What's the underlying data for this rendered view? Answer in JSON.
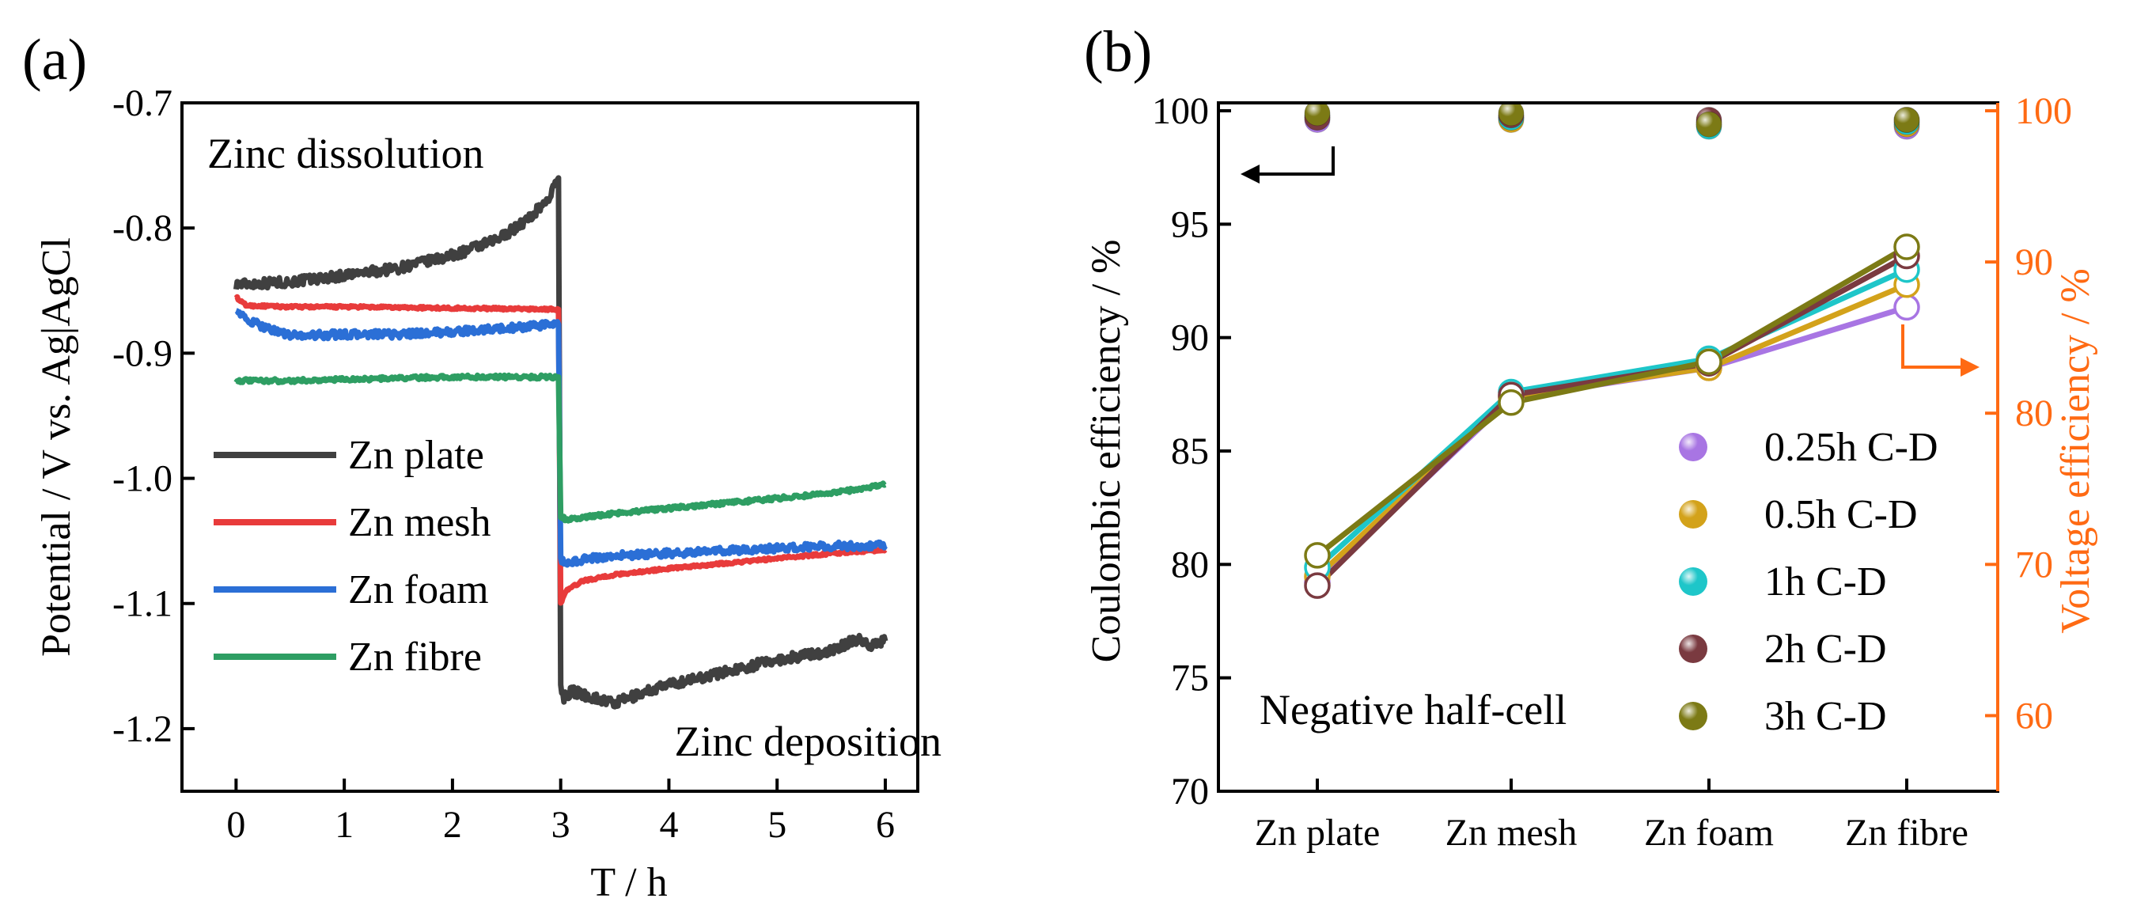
{
  "chart_data": [
    {
      "type": "line",
      "panel_label": "(a)",
      "title": "",
      "xlabel": "T / h",
      "ylabel": "Potential / V vs. Ag|AgCl",
      "xlim": [
        -0.5,
        6.3
      ],
      "ylim": [
        -1.25,
        -0.7
      ],
      "x_ticks": [
        0,
        1,
        2,
        3,
        4,
        5,
        6
      ],
      "y_ticks": [
        -0.7,
        -0.8,
        -0.9,
        -1.0,
        -1.1,
        -1.2
      ],
      "y_tick_labels": [
        "-0.7",
        "-0.8",
        "-0.9",
        "-1.0",
        "-1.1",
        "-1.2"
      ],
      "annotations": [
        "Zinc dissolution",
        "Zinc deposition"
      ],
      "legend": [
        "Zn plate",
        "Zn mesh",
        "Zn foam",
        "Zn fibre"
      ],
      "series": [
        {
          "name": "Zn plate",
          "color": "#404040",
          "noise": 0.004,
          "x": [
            0,
            0.5,
            1,
            1.5,
            2,
            2.4,
            2.7,
            2.9,
            2.98,
            3.0,
            3.03,
            3.1,
            3.3,
            3.5,
            3.8,
            4.0,
            4.5,
            5.0,
            5.5,
            5.75,
            5.85,
            6.0
          ],
          "y": [
            -0.845,
            -0.843,
            -0.838,
            -0.832,
            -0.822,
            -0.81,
            -0.793,
            -0.775,
            -0.76,
            -1.165,
            -1.175,
            -1.17,
            -1.175,
            -1.18,
            -1.17,
            -1.165,
            -1.155,
            -1.145,
            -1.138,
            -1.128,
            -1.133,
            -1.13
          ]
        },
        {
          "name": "Zn mesh",
          "color": "#e83b3b",
          "noise": 0.001,
          "x": [
            0,
            0.03,
            0.1,
            0.5,
            1,
            2,
            2.98,
            3.0,
            3.05,
            3.2,
            3.5,
            4,
            4.5,
            5,
            5.5,
            6.0
          ],
          "y": [
            -0.855,
            -0.858,
            -0.862,
            -0.863,
            -0.863,
            -0.864,
            -0.865,
            -1.1,
            -1.09,
            -1.082,
            -1.077,
            -1.072,
            -1.068,
            -1.064,
            -1.06,
            -1.057
          ]
        },
        {
          "name": "Zn foam",
          "color": "#2b6fd6",
          "noise": 0.003,
          "x": [
            0,
            0.03,
            0.1,
            0.3,
            0.5,
            1,
            1.5,
            2,
            2.5,
            2.98,
            3.0,
            3.05,
            3.2,
            3.5,
            4,
            4.5,
            5,
            5.5,
            6.0
          ],
          "y": [
            -0.863,
            -0.868,
            -0.874,
            -0.88,
            -0.886,
            -0.885,
            -0.885,
            -0.883,
            -0.88,
            -0.877,
            -1.066,
            -1.068,
            -1.065,
            -1.062,
            -1.06,
            -1.058,
            -1.056,
            -1.054,
            -1.054
          ]
        },
        {
          "name": "Zn fibre",
          "color": "#2e9e63",
          "noise": 0.0015,
          "x": [
            0,
            0.5,
            1,
            1.5,
            2,
            2.5,
            2.98,
            3.0,
            3.05,
            3.5,
            4,
            4.5,
            5,
            5.5,
            5.8,
            6.0
          ],
          "y": [
            -0.922,
            -0.922,
            -0.921,
            -0.92,
            -0.919,
            -0.919,
            -0.919,
            -1.03,
            -1.033,
            -1.028,
            -1.024,
            -1.02,
            -1.016,
            -1.012,
            -1.008,
            -1.005
          ]
        }
      ]
    },
    {
      "type": "scatter",
      "panel_label": "(b)",
      "title": "",
      "categories": [
        "Zn plate",
        "Zn mesh",
        "Zn foam",
        "Zn fibre"
      ],
      "xlabel": "",
      "ylabel": "Coulombic efficiency / %",
      "ylim": [
        70,
        100
      ],
      "y_ticks": [
        70,
        75,
        80,
        85,
        90,
        95,
        100
      ],
      "y2label": "Voltage efficiency / %",
      "y2lim": [
        55,
        100
      ],
      "y2_ticks": [
        60,
        70,
        80,
        90,
        100
      ],
      "y2_color": "#ff6a13",
      "annotation": "Negative half-cell",
      "legend": [
        "0.25h C-D",
        "0.5h C-D",
        "1h C-D",
        "2h C-D",
        "3h C-D"
      ],
      "series": [
        {
          "name": "0.25h C-D",
          "color": "#a875e3",
          "coulombic_efficiency": [
            99.6,
            99.7,
            99.4,
            99.3
          ],
          "voltage_efficiency": [
            68.8,
            81.0,
            83.0,
            87.0
          ]
        },
        {
          "name": "0.5h C-D",
          "color": "#d3a21a",
          "coulombic_efficiency": [
            99.7,
            99.6,
            99.5,
            99.4
          ],
          "voltage_efficiency": [
            69.2,
            81.1,
            83.0,
            88.5
          ]
        },
        {
          "name": "1h C-D",
          "color": "#1ec6c9",
          "coulombic_efficiency": [
            99.8,
            99.7,
            99.3,
            99.5
          ],
          "voltage_efficiency": [
            69.8,
            81.4,
            83.6,
            89.5
          ]
        },
        {
          "name": "2h C-D",
          "color": "#7a3a40",
          "coulombic_efficiency": [
            99.7,
            99.8,
            99.6,
            99.6
          ],
          "voltage_efficiency": [
            68.6,
            81.2,
            83.3,
            90.4
          ]
        },
        {
          "name": "3h C-D",
          "color": "#7c7a15",
          "coulombic_efficiency": [
            99.9,
            99.9,
            99.4,
            99.6
          ],
          "voltage_efficiency": [
            70.6,
            80.7,
            83.4,
            91.0
          ]
        }
      ]
    }
  ]
}
